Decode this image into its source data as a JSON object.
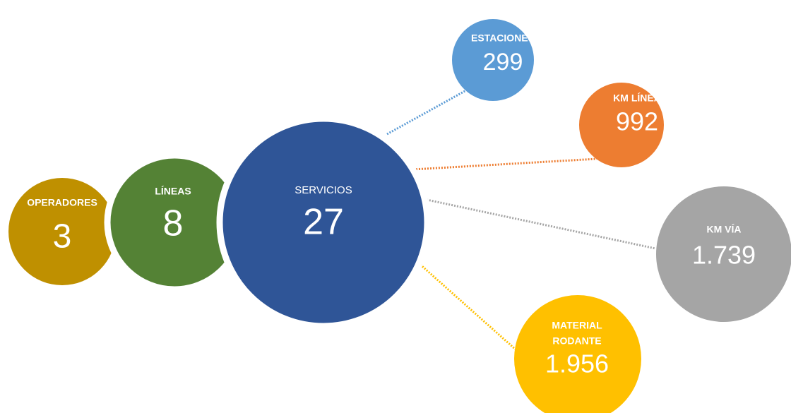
{
  "nodes": [
    {
      "label": "OPERADORES",
      "value": "3"
    },
    {
      "label": "LÍNEAS",
      "value": "8"
    },
    {
      "label": "SERVICIOS",
      "value": "27"
    },
    {
      "label": "ESTACIONES",
      "value": "299"
    },
    {
      "label": "KM LÍNEA",
      "value": "992"
    },
    {
      "label": "KM VÍA",
      "value": "1.739"
    },
    {
      "label": "MATERIAL",
      "label2": "RODANTE",
      "value": "1.956"
    }
  ]
}
